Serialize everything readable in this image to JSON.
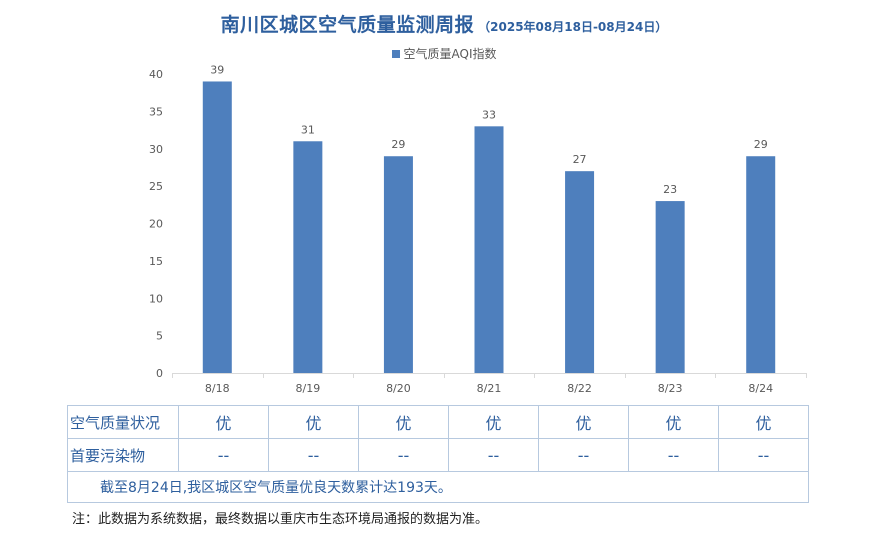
{
  "header": {
    "title": "南川区城区空气质量监测周报",
    "subtitle": "（2025年08月18日-08月24日）"
  },
  "chart_data": {
    "type": "bar",
    "categories": [
      "8/18",
      "8/19",
      "8/20",
      "8/21",
      "8/22",
      "8/23",
      "8/24"
    ],
    "series": [
      {
        "name": "空气质量AQI指数",
        "values": [
          39,
          31,
          29,
          33,
          27,
          23,
          29
        ]
      }
    ],
    "ylim": [
      0,
      40
    ],
    "yticks": [
      0,
      5,
      10,
      15,
      20,
      25,
      30,
      35,
      40
    ],
    "grid": false,
    "legend_position": "top",
    "bar_color": "#4e7fbd"
  },
  "table": {
    "rows": [
      {
        "label": "空气质量状况",
        "values": [
          "优",
          "优",
          "优",
          "优",
          "优",
          "优",
          "优"
        ]
      },
      {
        "label": "首要污染物",
        "values": [
          "--",
          "--",
          "--",
          "--",
          "--",
          "--",
          "--"
        ]
      }
    ],
    "summary": "截至8月24日,我区城区空气质量优良天数累计达193天。"
  },
  "footnote": "注：此数据为系统数据，最终数据以重庆市生态环境局通报的数据为准。",
  "colors": {
    "bar": "#4e7fbd",
    "title": "#2e5f9e",
    "table_text": "#2e5f9e",
    "table_border": "#b7c9df"
  }
}
